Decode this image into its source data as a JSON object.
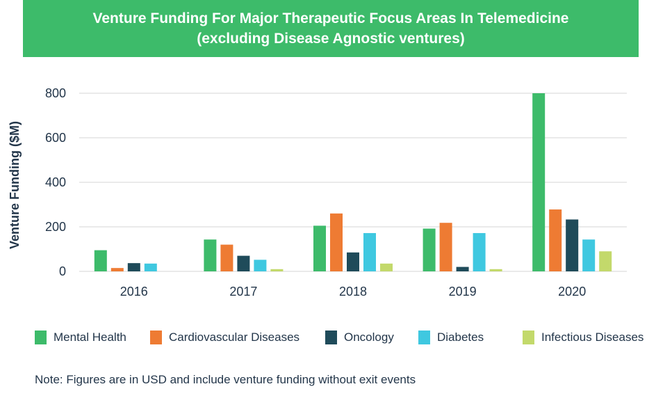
{
  "title_line1": "Venture Funding For Major Therapeutic Focus Areas In Telemedicine",
  "title_line2": "(excluding Disease Agnostic ventures)",
  "note": "Note:  Figures are in USD and include venture funding without exit events",
  "chart_data": {
    "type": "bar",
    "ylabel": "Venture Funding ($M)",
    "ylim": [
      0,
      800
    ],
    "yticks": [
      "0",
      "200",
      "400",
      "600",
      "800"
    ],
    "grid": true,
    "legend_position": "bottom",
    "categories": [
      "2016",
      "2017",
      "2018",
      "2019",
      "2020"
    ],
    "series": [
      {
        "name": "Mental Health",
        "color": "#3dbb6a",
        "values": [
          95,
          143,
          205,
          192,
          800
        ]
      },
      {
        "name": "Cardiovascular Diseases",
        "color": "#ee7b33",
        "values": [
          15,
          120,
          260,
          218,
          278
        ]
      },
      {
        "name": "Oncology",
        "color": "#1f4b5a",
        "values": [
          37,
          70,
          85,
          20,
          233
        ]
      },
      {
        "name": "Diabetes",
        "color": "#3fc8e0",
        "values": [
          35,
          52,
          172,
          172,
          143
        ]
      },
      {
        "name": "Infectious Diseases",
        "color": "#c3d96b",
        "values": [
          0,
          10,
          35,
          10,
          90
        ]
      }
    ]
  }
}
